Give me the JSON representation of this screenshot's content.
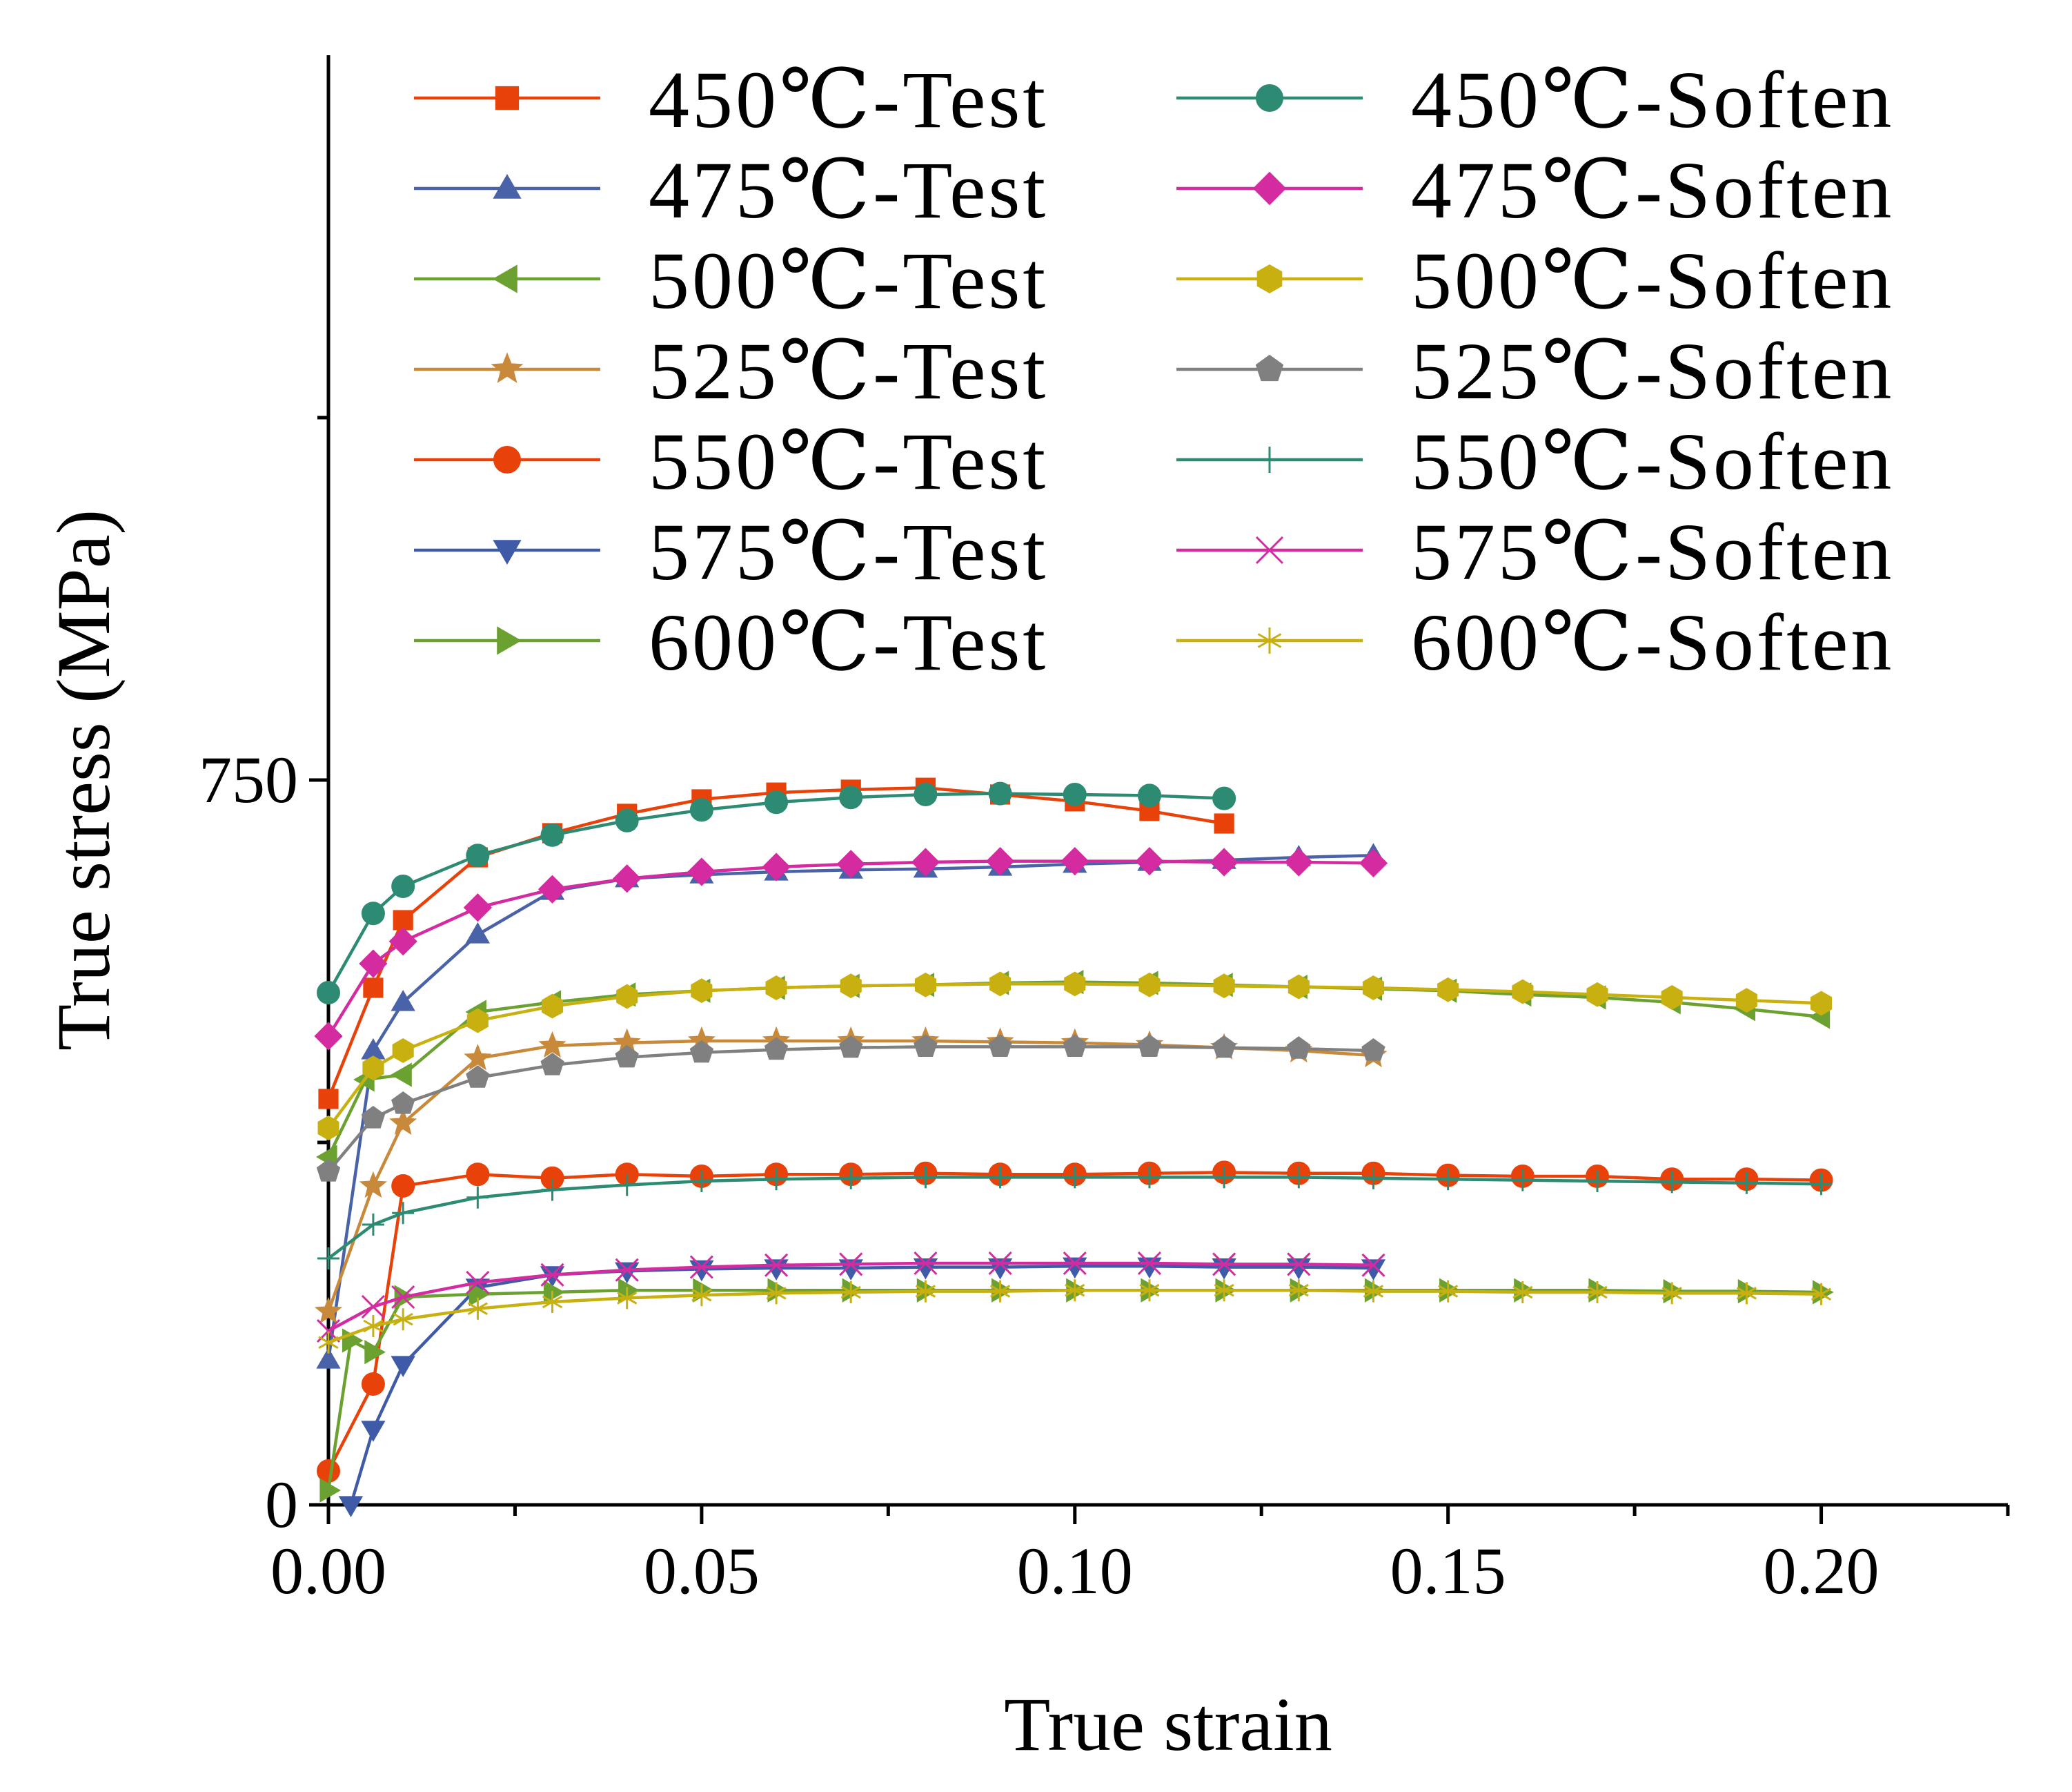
{
  "chart_data": {
    "type": "line",
    "xlabel": "True strain",
    "ylabel": "True stress (MPa)",
    "xlim": [
      0,
      0.225
    ],
    "ylim": [
      0,
      1500
    ],
    "x_major_ticks": [
      0,
      0.05,
      0.1,
      0.15,
      0.2
    ],
    "x_tick_labels": [
      "0.00",
      "0.05",
      "0.10",
      "0.15",
      "0.20"
    ],
    "x_minor_ticks": [
      0.025,
      0.075,
      0.125,
      0.175,
      0.225
    ],
    "y_major_ticks": [
      0,
      750
    ],
    "y_tick_labels": [
      "0",
      "750"
    ],
    "y_minor_ticks": [
      375,
      1125
    ],
    "legend_position": "top-right, two columns",
    "series": [
      {
        "name": "450℃-Test",
        "color": "#E8420A",
        "marker": "square",
        "x": [
          0.0,
          0.006,
          0.01,
          0.02,
          0.03,
          0.04,
          0.05,
          0.06,
          0.07,
          0.08,
          0.09,
          0.1,
          0.11,
          0.12
        ],
        "y": [
          420,
          535,
          605,
          670,
          695,
          715,
          730,
          737,
          740,
          742,
          735,
          728,
          718,
          705
        ]
      },
      {
        "name": "475℃-Test",
        "color": "#4A62A8",
        "marker": "triangle-up",
        "x": [
          0.0,
          0.006,
          0.01,
          0.02,
          0.03,
          0.04,
          0.05,
          0.06,
          0.07,
          0.08,
          0.09,
          0.1,
          0.11,
          0.12,
          0.13,
          0.14
        ],
        "y": [
          150,
          470,
          520,
          590,
          635,
          648,
          652,
          655,
          657,
          658,
          660,
          663,
          665,
          667,
          670,
          672
        ]
      },
      {
        "name": "500℃-Test",
        "color": "#6BA130",
        "marker": "triangle-left",
        "x": [
          0.0,
          0.005,
          0.01,
          0.02,
          0.03,
          0.04,
          0.05,
          0.06,
          0.07,
          0.08,
          0.09,
          0.1,
          0.11,
          0.12,
          0.13,
          0.14,
          0.15,
          0.16,
          0.17,
          0.18,
          0.19,
          0.2
        ],
        "y": [
          360,
          440,
          445,
          510,
          520,
          528,
          532,
          535,
          537,
          538,
          540,
          541,
          540,
          538,
          536,
          534,
          532,
          528,
          525,
          520,
          513,
          505
        ]
      },
      {
        "name": "525℃-Test",
        "color": "#C88A3A",
        "marker": "star",
        "x": [
          0.0,
          0.006,
          0.01,
          0.02,
          0.03,
          0.04,
          0.05,
          0.06,
          0.07,
          0.08,
          0.09,
          0.1,
          0.11,
          0.12,
          0.13,
          0.14
        ],
        "y": [
          200,
          330,
          395,
          462,
          475,
          478,
          480,
          480,
          480,
          480,
          479,
          478,
          476,
          473,
          470,
          465
        ]
      },
      {
        "name": "550℃-Test",
        "color": "#E8420A",
        "marker": "circle",
        "x": [
          0.0,
          0.006,
          0.01,
          0.02,
          0.03,
          0.04,
          0.05,
          0.06,
          0.07,
          0.08,
          0.09,
          0.1,
          0.11,
          0.12,
          0.13,
          0.14,
          0.15,
          0.16,
          0.17,
          0.18,
          0.19,
          0.2
        ],
        "y": [
          35,
          125,
          330,
          342,
          338,
          342,
          340,
          342,
          342,
          343,
          342,
          342,
          343,
          344,
          343,
          343,
          341,
          340,
          340,
          337,
          337,
          336
        ]
      },
      {
        "name": "575℃-Test",
        "color": "#3F5BA8",
        "marker": "triangle-down",
        "x": [
          0.003,
          0.006,
          0.01,
          0.02,
          0.03,
          0.04,
          0.05,
          0.06,
          0.07,
          0.08,
          0.09,
          0.1,
          0.11,
          0.12,
          0.13,
          0.14
        ],
        "y": [
          0,
          78,
          145,
          225,
          238,
          242,
          244,
          245,
          245,
          246,
          246,
          247,
          247,
          246,
          246,
          245
        ]
      },
      {
        "name": "600℃-Test",
        "color": "#6BA130",
        "marker": "triangle-right",
        "x": [
          0.0,
          0.003,
          0.006,
          0.01,
          0.02,
          0.03,
          0.04,
          0.05,
          0.06,
          0.07,
          0.08,
          0.09,
          0.1,
          0.11,
          0.12,
          0.13,
          0.14,
          0.15,
          0.16,
          0.17,
          0.18,
          0.19,
          0.2
        ],
        "y": [
          15,
          170,
          158,
          215,
          218,
          220,
          222,
          222,
          222,
          222,
          222,
          222,
          222,
          222,
          222,
          222,
          222,
          222,
          222,
          222,
          221,
          221,
          220
        ]
      },
      {
        "name": "450℃-Soften",
        "color": "#2E8B73",
        "marker": "circle",
        "x": [
          0.0,
          0.006,
          0.01,
          0.02,
          0.03,
          0.04,
          0.05,
          0.06,
          0.07,
          0.08,
          0.09,
          0.1,
          0.11,
          0.12
        ],
        "y": [
          530,
          612,
          640,
          672,
          693,
          708,
          719,
          727,
          732,
          735,
          736,
          735,
          734,
          731
        ]
      },
      {
        "name": "475℃-Soften",
        "color": "#D42BA0",
        "marker": "diamond",
        "x": [
          0.0,
          0.006,
          0.01,
          0.02,
          0.03,
          0.04,
          0.05,
          0.06,
          0.07,
          0.08,
          0.09,
          0.1,
          0.11,
          0.12,
          0.13,
          0.14
        ],
        "y": [
          485,
          560,
          583,
          618,
          637,
          648,
          655,
          660,
          663,
          665,
          666,
          666,
          666,
          665,
          665,
          664
        ]
      },
      {
        "name": "500℃-Soften",
        "color": "#C9B011",
        "marker": "hexagon",
        "x": [
          0.0,
          0.006,
          0.01,
          0.02,
          0.03,
          0.04,
          0.05,
          0.06,
          0.07,
          0.08,
          0.09,
          0.1,
          0.11,
          0.12,
          0.13,
          0.14,
          0.15,
          0.16,
          0.17,
          0.18,
          0.19,
          0.2
        ],
        "y": [
          390,
          452,
          470,
          501,
          516,
          526,
          532,
          535,
          537,
          538,
          539,
          539,
          538,
          537,
          536,
          535,
          533,
          531,
          528,
          525,
          522,
          519
        ]
      },
      {
        "name": "525℃-Soften",
        "color": "#808080",
        "marker": "pentagon",
        "x": [
          0.0,
          0.006,
          0.01,
          0.02,
          0.03,
          0.04,
          0.05,
          0.06,
          0.07,
          0.08,
          0.09,
          0.1,
          0.11,
          0.12,
          0.13,
          0.14
        ],
        "y": [
          345,
          400,
          415,
          442,
          455,
          463,
          468,
          471,
          473,
          474,
          474,
          474,
          474,
          473,
          472,
          470
        ]
      },
      {
        "name": "550℃-Soften",
        "color": "#2E8B73",
        "marker": "plus",
        "x": [
          0.0,
          0.006,
          0.01,
          0.02,
          0.03,
          0.04,
          0.05,
          0.06,
          0.07,
          0.08,
          0.09,
          0.1,
          0.11,
          0.12,
          0.13,
          0.14,
          0.15,
          0.16,
          0.17,
          0.18,
          0.19,
          0.2
        ],
        "y": [
          255,
          290,
          302,
          318,
          326,
          331,
          335,
          337,
          338,
          339,
          339,
          339,
          339,
          339,
          339,
          338,
          337,
          336,
          335,
          334,
          333,
          332
        ]
      },
      {
        "name": "575℃-Soften",
        "color": "#D42BA0",
        "marker": "x",
        "x": [
          0.0,
          0.006,
          0.01,
          0.02,
          0.03,
          0.04,
          0.05,
          0.06,
          0.07,
          0.08,
          0.09,
          0.1,
          0.11,
          0.12,
          0.13,
          0.14
        ],
        "y": [
          180,
          205,
          215,
          230,
          238,
          243,
          246,
          248,
          249,
          250,
          250,
          250,
          250,
          249,
          249,
          248
        ]
      },
      {
        "name": "600℃-Soften",
        "color": "#C9B011",
        "marker": "asterisk",
        "x": [
          0.0,
          0.006,
          0.01,
          0.02,
          0.03,
          0.04,
          0.05,
          0.06,
          0.07,
          0.08,
          0.09,
          0.1,
          0.11,
          0.12,
          0.13,
          0.14,
          0.15,
          0.16,
          0.17,
          0.18,
          0.19,
          0.2
        ],
        "y": [
          168,
          185,
          192,
          203,
          210,
          214,
          217,
          219,
          220,
          221,
          221,
          222,
          222,
          222,
          222,
          221,
          221,
          220,
          220,
          219,
          219,
          218
        ]
      }
    ]
  }
}
